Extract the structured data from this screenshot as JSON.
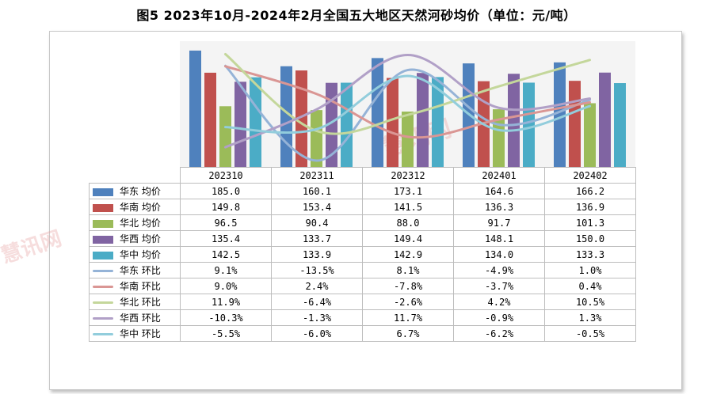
{
  "title": "图5 2023年10月-2024年2月全国五大地区天然河砂均价（单位：元/吨）",
  "watermark": "慧讯网",
  "chart_data": {
    "type": "bar",
    "categories": [
      "202310",
      "202311",
      "202312",
      "202401",
      "202402"
    ],
    "series": [
      {
        "name": "华东 均价",
        "kind": "bar",
        "color": "#4f81bd",
        "values": [
          "185.0",
          "160.1",
          "173.1",
          "164.6",
          "166.2"
        ]
      },
      {
        "name": "华南 均价",
        "kind": "bar",
        "color": "#c0504d",
        "values": [
          "149.8",
          "153.4",
          "141.5",
          "136.3",
          "136.9"
        ]
      },
      {
        "name": "华北 均价",
        "kind": "bar",
        "color": "#9bbb59",
        "values": [
          "96.5",
          "90.4",
          "88.0",
          "91.7",
          "101.3"
        ]
      },
      {
        "name": "华西 均价",
        "kind": "bar",
        "color": "#8064a2",
        "values": [
          "135.4",
          "133.7",
          "149.4",
          "148.1",
          "150.0"
        ]
      },
      {
        "name": "华中 均价",
        "kind": "bar",
        "color": "#4bacc6",
        "values": [
          "142.5",
          "133.9",
          "142.9",
          "134.0",
          "133.3"
        ]
      },
      {
        "name": "华东 环比",
        "kind": "line",
        "color": "#95b3d7",
        "values": [
          "9.1%",
          "-13.5%",
          "8.1%",
          "-4.9%",
          "1.0%"
        ]
      },
      {
        "name": "华南 环比",
        "kind": "line",
        "color": "#da9694",
        "values": [
          "9.0%",
          "2.4%",
          "-7.8%",
          "-3.7%",
          "0.4%"
        ]
      },
      {
        "name": "华北 环比",
        "kind": "line",
        "color": "#c4d79b",
        "values": [
          "11.9%",
          "-6.4%",
          "-2.6%",
          "4.2%",
          "10.5%"
        ]
      },
      {
        "name": "华西 环比",
        "kind": "line",
        "color": "#b1a0c7",
        "values": [
          "-10.3%",
          "-1.3%",
          "11.7%",
          "-0.9%",
          "1.3%"
        ]
      },
      {
        "name": "华中 环比",
        "kind": "line",
        "color": "#92cddc",
        "values": [
          "-5.5%",
          "-6.0%",
          "6.7%",
          "-6.2%",
          "-0.5%"
        ]
      }
    ],
    "bar_axis_range": [
      0,
      200
    ],
    "line_axis_range": [
      -15,
      15
    ],
    "grid": false,
    "legend_placement": "data-table"
  }
}
